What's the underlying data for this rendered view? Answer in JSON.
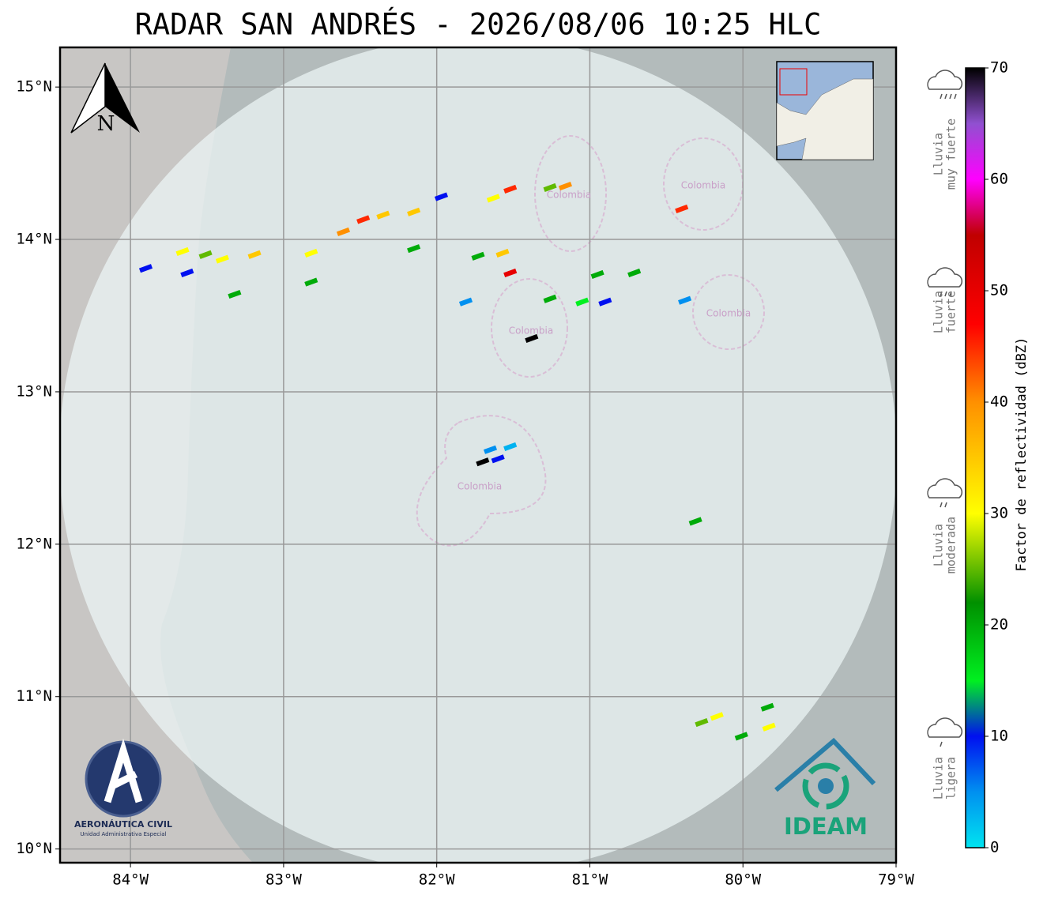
{
  "title": "RADAR SAN ANDRÉS - 2026/08/06 10:25 HLC",
  "map": {
    "xlim": [
      -84.46,
      -79
    ],
    "ylim": [
      9.91,
      15.26
    ],
    "xticks": [
      {
        "value": -84,
        "label": "84°W"
      },
      {
        "value": -83,
        "label": "83°W"
      },
      {
        "value": -82,
        "label": "82°W"
      },
      {
        "value": -81,
        "label": "81°W"
      },
      {
        "value": -80,
        "label": "80°W"
      },
      {
        "value": -79,
        "label": "79°W"
      }
    ],
    "yticks": [
      {
        "value": 10,
        "label": "10°N"
      },
      {
        "value": 11,
        "label": "11°N"
      },
      {
        "value": 12,
        "label": "12°N"
      },
      {
        "value": 13,
        "label": "13°N"
      },
      {
        "value": 14,
        "label": "14°N"
      },
      {
        "value": 15,
        "label": "15°N"
      }
    ],
    "grid": true,
    "north": "N",
    "island_labels": [
      "Colombia",
      "Colombia",
      "Colombia",
      "Colombia",
      "Colombia"
    ]
  },
  "echoes": [
    {
      "lon": -83.66,
      "lat": 13.92,
      "dbz": 30
    },
    {
      "lon": -83.63,
      "lat": 13.78,
      "dbz": 10
    },
    {
      "lon": -83.51,
      "lat": 13.9,
      "dbz": 25
    },
    {
      "lon": -83.4,
      "lat": 13.87,
      "dbz": 30
    },
    {
      "lon": -83.19,
      "lat": 13.9,
      "dbz": 35
    },
    {
      "lon": -82.82,
      "lat": 13.91,
      "dbz": 30
    },
    {
      "lon": -82.61,
      "lat": 14.05,
      "dbz": 40
    },
    {
      "lon": -82.48,
      "lat": 14.13,
      "dbz": 45
    },
    {
      "lon": -82.35,
      "lat": 14.16,
      "dbz": 35
    },
    {
      "lon": -82.15,
      "lat": 14.18,
      "dbz": 35
    },
    {
      "lon": -81.97,
      "lat": 14.28,
      "dbz": 10
    },
    {
      "lon": -81.63,
      "lat": 14.27,
      "dbz": 30
    },
    {
      "lon": -81.52,
      "lat": 14.33,
      "dbz": 45
    },
    {
      "lon": -81.26,
      "lat": 14.34,
      "dbz": 25
    },
    {
      "lon": -81.16,
      "lat": 14.35,
      "dbz": 40
    },
    {
      "lon": -80.4,
      "lat": 14.2,
      "dbz": 45
    },
    {
      "lon": -81.57,
      "lat": 13.91,
      "dbz": 35
    },
    {
      "lon": -81.52,
      "lat": 13.78,
      "dbz": 50
    },
    {
      "lon": -81.73,
      "lat": 13.89,
      "dbz": 20
    },
    {
      "lon": -81.26,
      "lat": 13.61,
      "dbz": 20
    },
    {
      "lon": -81.05,
      "lat": 13.59,
      "dbz": 15
    },
    {
      "lon": -80.95,
      "lat": 13.77,
      "dbz": 20
    },
    {
      "lon": -80.9,
      "lat": 13.59,
      "dbz": 10
    },
    {
      "lon": -80.71,
      "lat": 13.78,
      "dbz": 20
    },
    {
      "lon": -80.38,
      "lat": 13.6,
      "dbz": 5
    },
    {
      "lon": -81.38,
      "lat": 13.35,
      "dbz": 70
    },
    {
      "lon": -81.65,
      "lat": 12.62,
      "dbz": 5
    },
    {
      "lon": -81.6,
      "lat": 12.56,
      "dbz": 10
    },
    {
      "lon": -81.7,
      "lat": 12.54,
      "dbz": 70
    },
    {
      "lon": -81.52,
      "lat": 12.64,
      "dbz": 3
    },
    {
      "lon": -80.31,
      "lat": 12.15,
      "dbz": 20
    },
    {
      "lon": -80.27,
      "lat": 10.83,
      "dbz": 25
    },
    {
      "lon": -80.17,
      "lat": 10.87,
      "dbz": 30
    },
    {
      "lon": -80.01,
      "lat": 10.74,
      "dbz": 20
    },
    {
      "lon": -79.83,
      "lat": 10.8,
      "dbz": 30
    },
    {
      "lon": -79.84,
      "lat": 10.93,
      "dbz": 20
    },
    {
      "lon": -83.9,
      "lat": 13.81,
      "dbz": 10
    },
    {
      "lon": -83.32,
      "lat": 13.64,
      "dbz": 20
    },
    {
      "lon": -82.82,
      "lat": 13.72,
      "dbz": 20
    },
    {
      "lon": -81.81,
      "lat": 13.59,
      "dbz": 5
    },
    {
      "lon": -82.15,
      "lat": 13.94,
      "dbz": 20
    }
  ],
  "colorbar": {
    "label": "Factor de reflectividad (dBZ)",
    "lim": [
      0,
      70
    ],
    "ticks": [
      0,
      10,
      20,
      30,
      40,
      50,
      60,
      70
    ],
    "stops": [
      [
        0,
        "#00e4f0"
      ],
      [
        5,
        "#0090f0"
      ],
      [
        10,
        "#0010f0"
      ],
      [
        15,
        "#00f020"
      ],
      [
        22,
        "#009000"
      ],
      [
        30,
        "#ffff00"
      ],
      [
        40,
        "#ff9000"
      ],
      [
        47,
        "#ff0000"
      ],
      [
        55,
        "#c00000"
      ],
      [
        60,
        "#ff00ff"
      ],
      [
        65,
        "#9050d0"
      ],
      [
        70,
        "#000000"
      ]
    ]
  },
  "intensity": [
    {
      "line1": "Lluvia",
      "line2": "ligera"
    },
    {
      "line1": "Lluvia",
      "line2": "moderada"
    },
    {
      "line1": "Lluvia",
      "line2": "fuerte"
    },
    {
      "line1": "Lluvia",
      "line2": "muy fuerte"
    }
  ],
  "logos": {
    "aero_title": "AERONÁUTICA CIVIL",
    "aero_sub": "Unidad Administrativa Especial",
    "ideam": "IDEAM"
  }
}
